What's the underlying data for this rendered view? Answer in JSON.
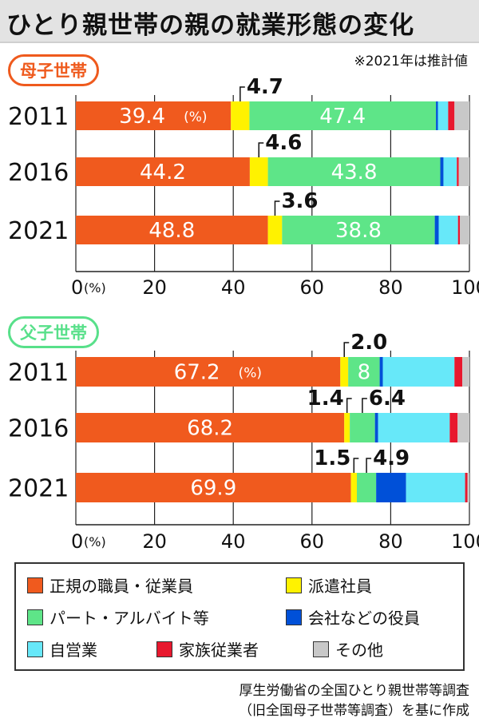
{
  "title": "ひとり親世帯の親の就業形態の変化",
  "note": "※2021年は推計値",
  "groups": [
    {
      "label": "母子世帯",
      "color": "#ef5a1d"
    },
    {
      "label": "父子世帯",
      "color": "#58e08a"
    }
  ],
  "legend": [
    {
      "label": "正規の職員・従業員",
      "color": "#f05a1e"
    },
    {
      "label": "派遣社員",
      "color": "#fff200"
    },
    {
      "label": "パート・アルバイト等",
      "color": "#5ee588"
    },
    {
      "label": "会社などの役員",
      "color": "#0050d8"
    },
    {
      "label": "自営業",
      "color": "#67e8f9"
    },
    {
      "label": "家族従業者",
      "color": "#e8182e"
    },
    {
      "label": "その他",
      "color": "#c8c8c8"
    }
  ],
  "source_lines": [
    "厚生労働省の全国ひとり親世帯等調査",
    "（旧全国母子世帯等調査）を基に作成"
  ],
  "chart_data": [
    {
      "type": "bar",
      "stacked": true,
      "orientation": "horizontal",
      "title": "母子世帯",
      "categories": [
        "2011",
        "2016",
        "2021"
      ],
      "xlim": [
        0,
        100
      ],
      "x_ticks": [
        "0",
        "20",
        "40",
        "60",
        "80",
        "100"
      ],
      "x_unit": "(%)",
      "series": [
        {
          "name": "正規の職員・従業員",
          "values": [
            39.4,
            44.2,
            48.8
          ]
        },
        {
          "name": "派遣社員",
          "values": [
            4.7,
            4.6,
            3.6
          ]
        },
        {
          "name": "パート・アルバイト等",
          "values": [
            47.4,
            43.8,
            38.8
          ]
        },
        {
          "name": "会社などの役員",
          "values": [
            0.5,
            0.8,
            1.0
          ]
        },
        {
          "name": "自営業",
          "values": [
            2.6,
            3.4,
            4.9
          ]
        },
        {
          "name": "家族従業者",
          "values": [
            1.6,
            0.5,
            0.5
          ]
        },
        {
          "name": "その他",
          "values": [
            3.8,
            2.7,
            2.4
          ]
        }
      ],
      "annotations": [
        {
          "row": 0,
          "series": 1,
          "label": "4.7"
        },
        {
          "row": 1,
          "series": 1,
          "label": "4.6"
        },
        {
          "row": 2,
          "series": 1,
          "label": "3.6"
        }
      ],
      "inside_labels": [
        {
          "row": 0,
          "series": 0,
          "label": "39.4",
          "unit": "(%)"
        },
        {
          "row": 0,
          "series": 2,
          "label": "47.4"
        },
        {
          "row": 1,
          "series": 0,
          "label": "44.2"
        },
        {
          "row": 1,
          "series": 2,
          "label": "43.8"
        },
        {
          "row": 2,
          "series": 0,
          "label": "48.8"
        },
        {
          "row": 2,
          "series": 2,
          "label": "38.8"
        }
      ]
    },
    {
      "type": "bar",
      "stacked": true,
      "orientation": "horizontal",
      "title": "父子世帯",
      "categories": [
        "2011",
        "2016",
        "2021"
      ],
      "xlim": [
        0,
        100
      ],
      "x_ticks": [
        "0",
        "20",
        "40",
        "60",
        "80",
        "100"
      ],
      "x_unit": "(%)",
      "series": [
        {
          "name": "正規の職員・従業員",
          "values": [
            67.2,
            68.2,
            69.9
          ]
        },
        {
          "name": "派遣社員",
          "values": [
            2.0,
            1.4,
            1.5
          ]
        },
        {
          "name": "パート・アルバイト等",
          "values": [
            8.0,
            6.4,
            4.9
          ]
        },
        {
          "name": "会社などの役員",
          "values": [
            0.8,
            0.8,
            7.6
          ]
        },
        {
          "name": "自営業",
          "values": [
            18.2,
            18.2,
            15.0
          ]
        },
        {
          "name": "家族従業者",
          "values": [
            2.0,
            2.0,
            0.6
          ]
        },
        {
          "name": "その他",
          "values": [
            1.8,
            3.0,
            0.5
          ]
        }
      ],
      "annotations": [
        {
          "row": 0,
          "series": 1,
          "label": "2.0"
        },
        {
          "row": 1,
          "series": 1,
          "label": "1.4"
        },
        {
          "row": 1,
          "series": 2,
          "label": "6.4"
        },
        {
          "row": 2,
          "series": 1,
          "label": "1.5"
        },
        {
          "row": 2,
          "series": 2,
          "label": "4.9"
        }
      ],
      "inside_labels": [
        {
          "row": 0,
          "series": 0,
          "label": "67.2",
          "unit": "(%)"
        },
        {
          "row": 0,
          "series": 2,
          "label": "8"
        },
        {
          "row": 1,
          "series": 0,
          "label": "68.2"
        },
        {
          "row": 2,
          "series": 0,
          "label": "69.9"
        }
      ]
    }
  ]
}
